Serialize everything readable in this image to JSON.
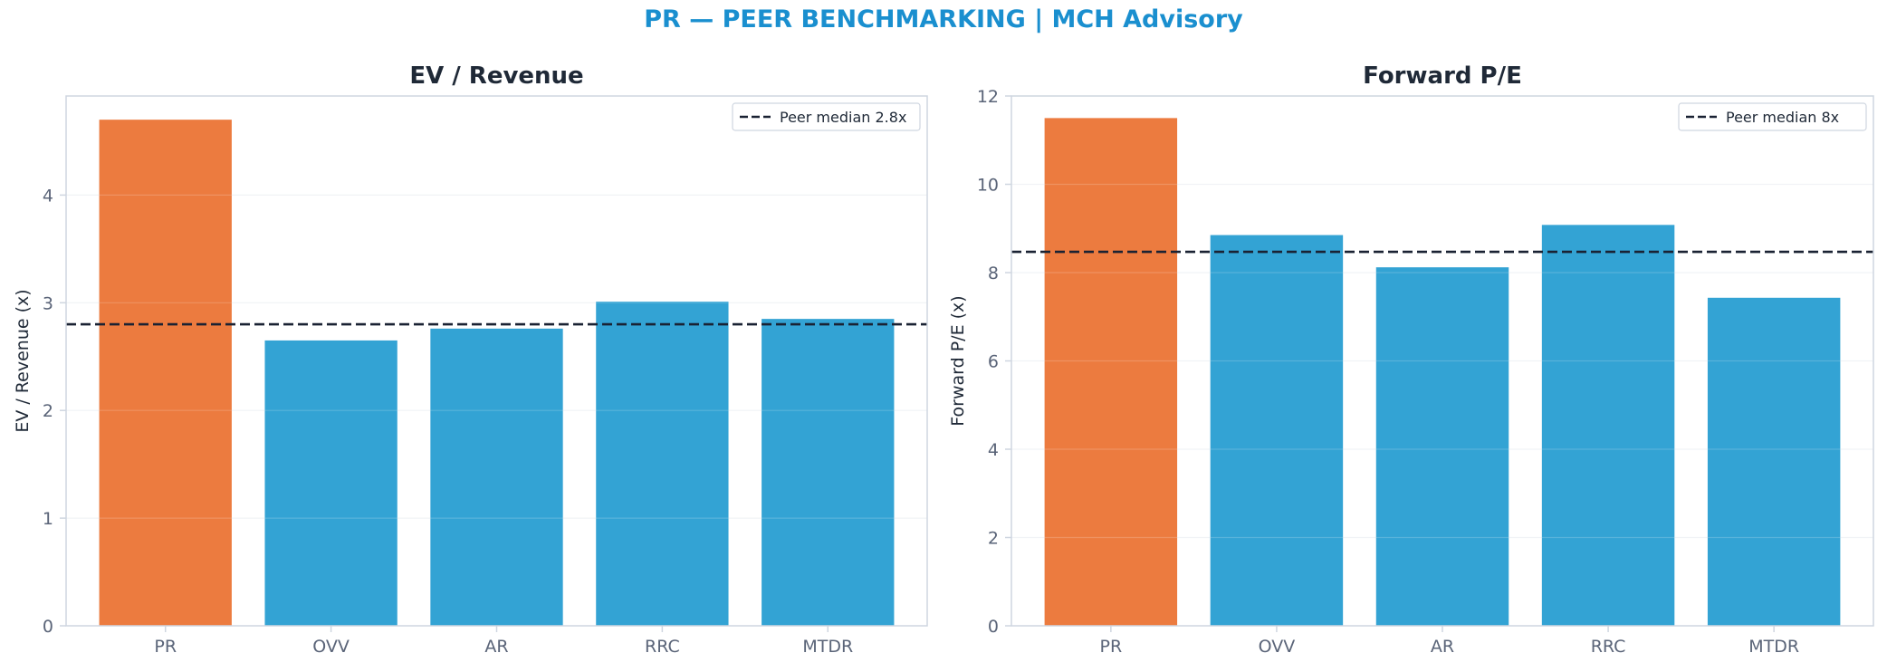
{
  "figure": {
    "suptitle": "PR — PEER BENCHMARKING | MCH Advisory"
  },
  "colors": {
    "highlight": "#ec7b3f",
    "peer": "#33a3d4",
    "median_line": "#1a2233",
    "axes": "#cfd6e0",
    "grid": "#eef1f5",
    "tick_text": "#5a6478"
  },
  "chart_data": [
    {
      "type": "bar",
      "title": "EV / Revenue",
      "xlabel": "",
      "ylabel": "EV / Revenue (x)",
      "categories": [
        "PR",
        "OVV",
        "AR",
        "RRC",
        "MTDR"
      ],
      "values": [
        4.7,
        2.65,
        2.76,
        3.01,
        2.85
      ],
      "highlight_category": "PR",
      "reference_line": {
        "value": 2.8,
        "label": "Peer median 2.8x",
        "style": "dashed"
      },
      "ylim": [
        0,
        4.92
      ],
      "yticks": [
        0,
        1,
        2,
        3,
        4
      ],
      "ytick_labels": [
        "0",
        "1",
        "2",
        "3",
        "4"
      ],
      "grid": true,
      "legend": "top-right"
    },
    {
      "type": "bar",
      "title": "Forward P/E",
      "xlabel": "",
      "ylabel": "Forward P/E (x)",
      "categories": [
        "PR",
        "OVV",
        "AR",
        "RRC",
        "MTDR"
      ],
      "values": [
        11.5,
        8.85,
        8.12,
        9.08,
        7.43
      ],
      "highlight_category": "PR",
      "reference_line": {
        "value": 8.47,
        "label": "Peer median 8x",
        "style": "dashed"
      },
      "ylim": [
        0,
        12
      ],
      "yticks": [
        0,
        2,
        4,
        6,
        8,
        10,
        12
      ],
      "ytick_labels": [
        "0",
        "2",
        "4",
        "6",
        "8",
        "10",
        "12"
      ],
      "grid": true,
      "legend": "top-right"
    }
  ]
}
